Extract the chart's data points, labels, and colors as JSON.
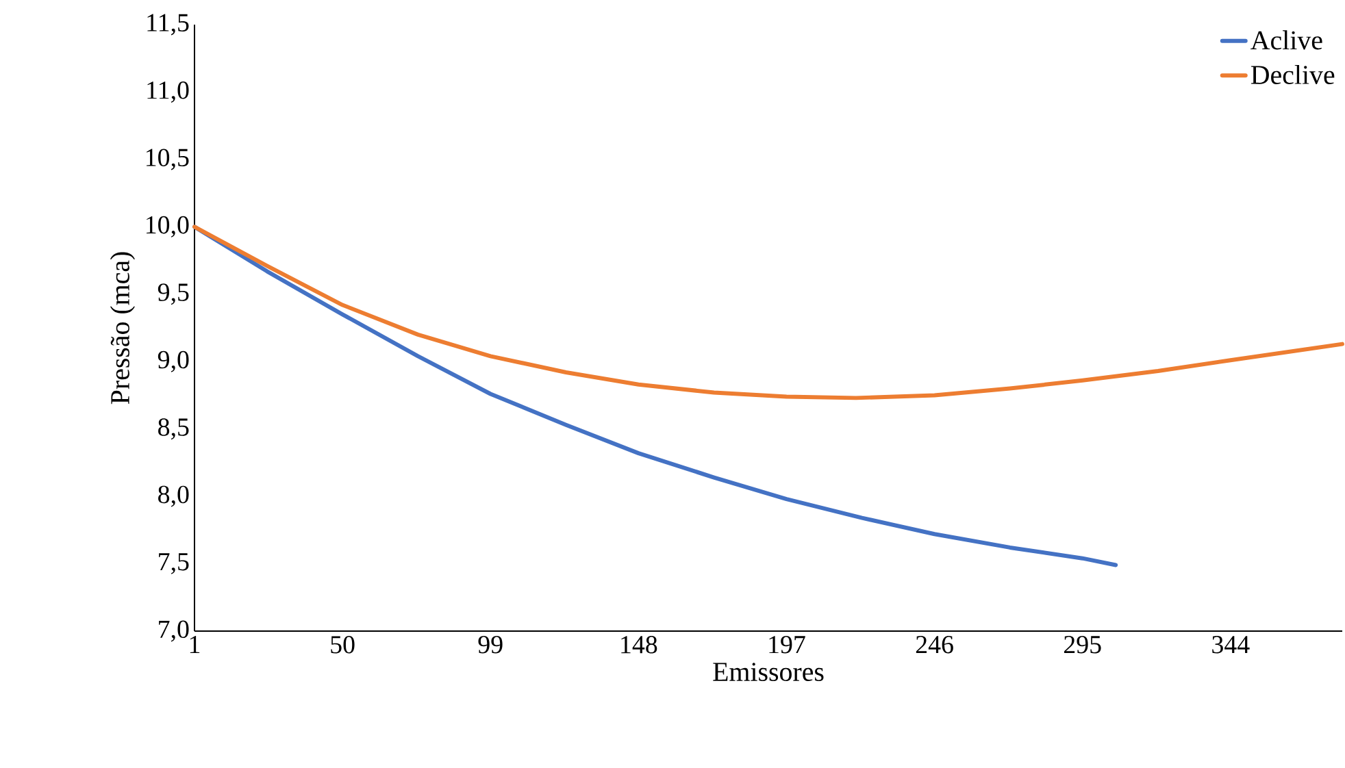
{
  "chart_data": {
    "type": "line",
    "xlabel": "Emissores",
    "ylabel": "Pressão (mca)",
    "xlim": [
      1,
      381
    ],
    "xticks": [
      1,
      50,
      99,
      148,
      197,
      246,
      295,
      344
    ],
    "ylim": [
      7.0,
      11.5
    ],
    "yticks": [
      {
        "value": 7.0,
        "label": "7,0"
      },
      {
        "value": 7.5,
        "label": "7,5"
      },
      {
        "value": 8.0,
        "label": "8,0"
      },
      {
        "value": 8.5,
        "label": "8,5"
      },
      {
        "value": 9.0,
        "label": "9,0"
      },
      {
        "value": 9.5,
        "label": "9,5"
      },
      {
        "value": 10.0,
        "label": "10,0"
      },
      {
        "value": 10.5,
        "label": "10,5"
      },
      {
        "value": 11.0,
        "label": "11,0"
      },
      {
        "value": 11.5,
        "label": "11,5"
      }
    ],
    "legend": "top right",
    "grid": false,
    "marker": "none",
    "line_style": "solid",
    "series": [
      {
        "name": "Aclive",
        "color": "#4472c4",
        "x": [
          1,
          25,
          50,
          75,
          99,
          124,
          148,
          173,
          197,
          222,
          246,
          271,
          295,
          306
        ],
        "values": [
          10.0,
          9.67,
          9.35,
          9.04,
          8.76,
          8.53,
          8.32,
          8.14,
          7.98,
          7.84,
          7.72,
          7.62,
          7.54,
          7.49
        ]
      },
      {
        "name": "Declive",
        "color": "#ed7d31",
        "x": [
          1,
          25,
          50,
          75,
          99,
          124,
          148,
          173,
          197,
          220,
          246,
          271,
          295,
          320,
          344,
          381
        ],
        "values": [
          10.0,
          9.71,
          9.42,
          9.2,
          9.04,
          8.92,
          8.83,
          8.77,
          8.74,
          8.73,
          8.75,
          8.8,
          8.86,
          8.93,
          9.01,
          9.13
        ]
      }
    ]
  }
}
